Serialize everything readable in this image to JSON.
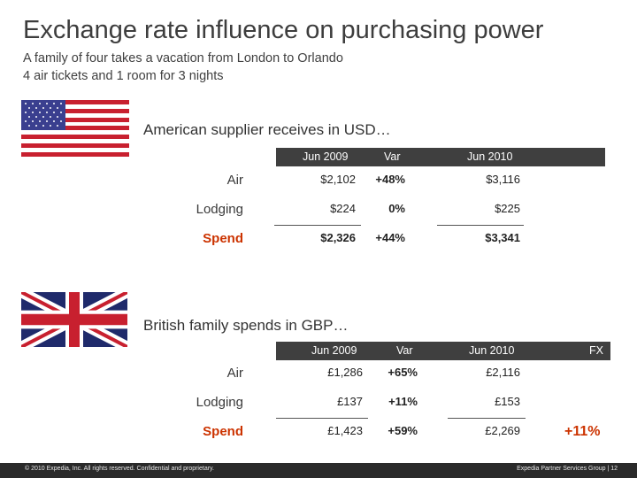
{
  "title": "Exchange rate influence on purchasing power",
  "subtitle_lines": [
    "A family of four takes a vacation from London to Orlando",
    "4 air tickets and 1 room for 3 nights"
  ],
  "us_section": {
    "flag_icon": "us-flag-icon",
    "heading": "American supplier receives in USD…",
    "headers": {
      "col1": "Jun 2009",
      "col2": "Var",
      "col3": "Jun 2010"
    },
    "rows": [
      {
        "label": "Air",
        "c1": "$2,102",
        "c2": "+48%",
        "c3": "$3,116"
      },
      {
        "label": "Lodging",
        "c1": "$224",
        "c2": "0%",
        "c3": "$225"
      },
      {
        "label": "Spend",
        "c1": "$2,326",
        "c2": "+44%",
        "c3": "$3,341"
      }
    ]
  },
  "uk_section": {
    "flag_icon": "uk-flag-icon",
    "heading": "British family spends in GBP…",
    "headers": {
      "col1": "Jun 2009",
      "col2": "Var",
      "col3": "Jun 2010",
      "col4": "FX"
    },
    "rows": [
      {
        "label": "Air",
        "c1": "£1,286",
        "c2": "+65%",
        "c3": "£2,116"
      },
      {
        "label": "Lodging",
        "c1": "£137",
        "c2": "+11%",
        "c3": "£153"
      },
      {
        "label": "Spend",
        "c1": "£1,423",
        "c2": "+59%",
        "c3": "£2,269"
      }
    ],
    "fx_value": "+11%"
  },
  "footer": {
    "left": "© 2010 Expedia, Inc. All rights reserved. Confidential and proprietary.",
    "right": "Expedia Partner Services Group  |  12"
  },
  "colors": {
    "accent": "#cc3300",
    "header_bar": "#3f3f3f",
    "footer_bar": "#2a2a2a"
  }
}
